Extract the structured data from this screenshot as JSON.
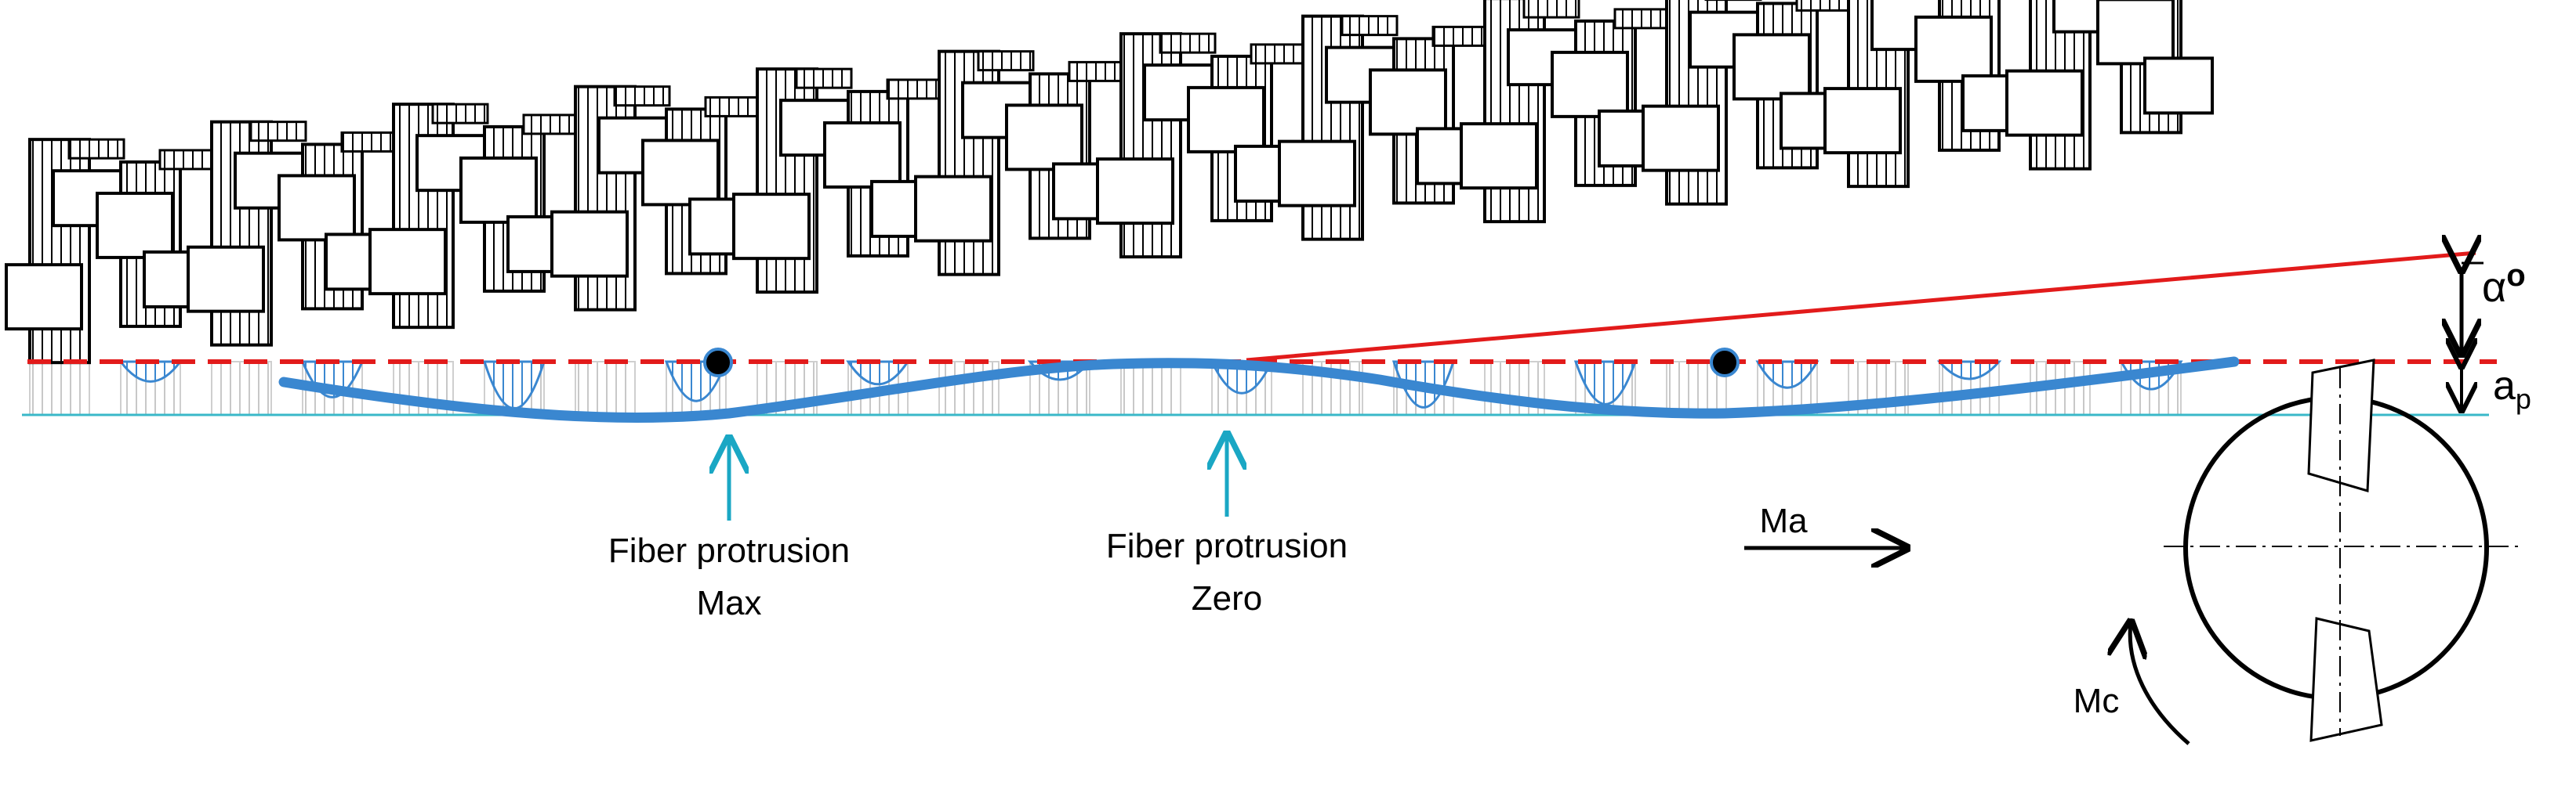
{
  "labels": {
    "protrusion_max_line1": "Fiber protrusion",
    "protrusion_max_line2": "Max",
    "protrusion_zero_line1": "Fiber protrusion",
    "protrusion_zero_line2": "Zero",
    "feed_motion": "Ma",
    "cutting_motion": "Mc",
    "angle_symbol": "α",
    "angle_superscript": "o",
    "depth_symbol": "a",
    "depth_subscript": "p"
  },
  "colors": {
    "surface_curve": "#3a87d0",
    "reference_line": "#e21b1b",
    "pointer_arrow": "#1aa7c4",
    "cut_baseline": "#3ab8c8",
    "outline": "#000000"
  },
  "icons": [
    "up-arrow-icon",
    "right-arrow-icon",
    "curved-arrow-icon",
    "double-arrow-icon"
  ]
}
